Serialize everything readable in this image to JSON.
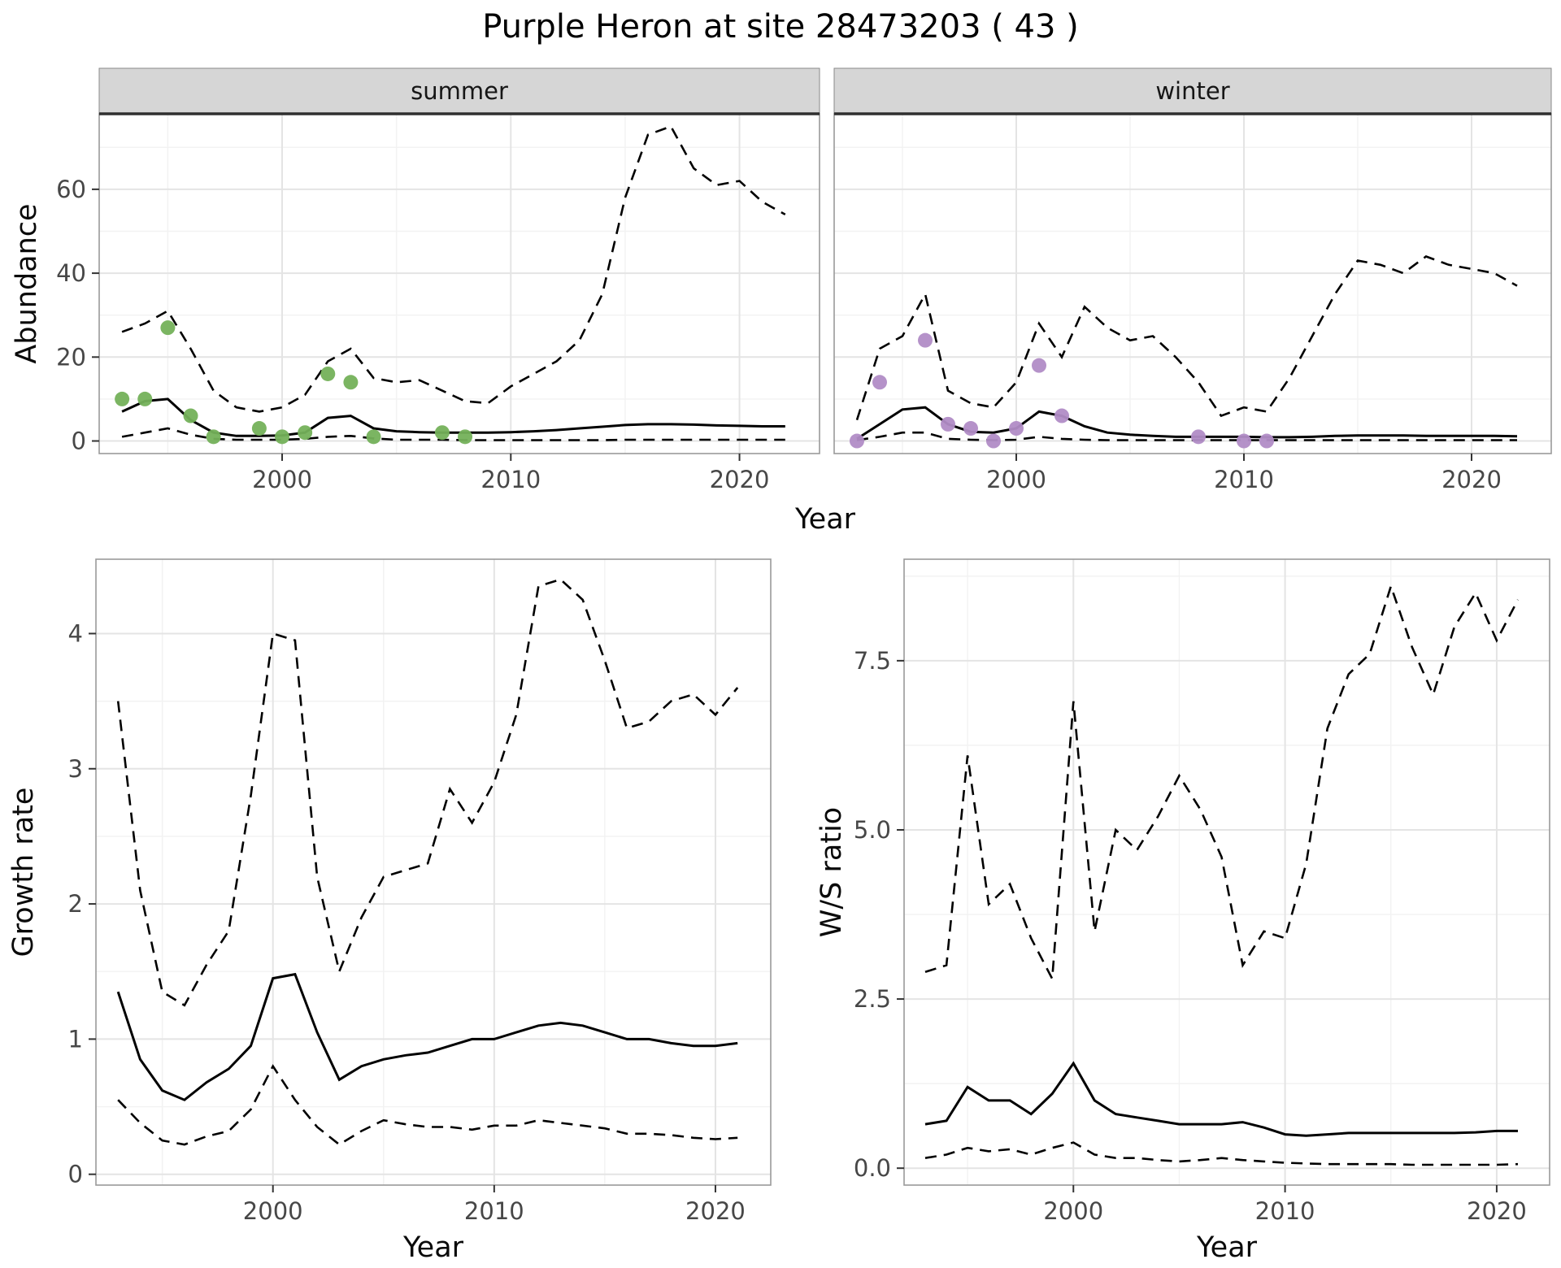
{
  "chart_data": {
    "type": "line",
    "title": "Purple Heron at site 28473203 ( 43 )",
    "style": {
      "line_color": "#000000",
      "strip_bg": "#d6d6d6",
      "strip_border": "#2f2f2f",
      "panel_border": "#9a9a9a",
      "grid_major": "#e4e4e4",
      "grid_minor": "#f2f2f2",
      "tick_color": "#333333",
      "dash": [
        14,
        9
      ]
    },
    "abundance_row": {
      "ylabel": "Abundance",
      "xlabel": "Year",
      "xlim": [
        1992,
        2023.5
      ],
      "ylim": [
        -3,
        78
      ],
      "xticks": [
        2000,
        2010,
        2020
      ],
      "xtick_labels": [
        "2000",
        "2010",
        "2020"
      ],
      "xticks_minor": [
        1995,
        2005,
        2015
      ],
      "yticks": [
        0,
        20,
        40,
        60
      ],
      "ytick_labels": [
        "0",
        "20",
        "40",
        "60"
      ],
      "yticks_minor": [
        10,
        30,
        50,
        70
      ],
      "years": [
        1993,
        1994,
        1995,
        1996,
        1997,
        1998,
        1999,
        2000,
        2001,
        2002,
        2003,
        2004,
        2005,
        2006,
        2007,
        2008,
        2009,
        2010,
        2011,
        2012,
        2013,
        2014,
        2015,
        2016,
        2017,
        2018,
        2019,
        2020,
        2021,
        2022
      ],
      "facets": [
        {
          "label": "summer",
          "point_color": "#74b15a",
          "mean": [
            7,
            9.5,
            10,
            5,
            2,
            1.2,
            1.2,
            1.3,
            2,
            5.5,
            6,
            3,
            2.3,
            2.1,
            2,
            2,
            2,
            2.1,
            2.3,
            2.6,
            3,
            3.4,
            3.8,
            4,
            4,
            3.9,
            3.7,
            3.6,
            3.5,
            3.5
          ],
          "upper": [
            26,
            28,
            31,
            22,
            12,
            8,
            7,
            8,
            11,
            19,
            22,
            15,
            14,
            14.5,
            12,
            9.5,
            9,
            13,
            16,
            19,
            24,
            35,
            58,
            73,
            75,
            65,
            61,
            62,
            57,
            54
          ],
          "lower": [
            1,
            2,
            3,
            1.5,
            0.5,
            0.3,
            0.3,
            0.3,
            0.5,
            1,
            1.2,
            0.6,
            0.3,
            0.3,
            0.3,
            0.2,
            0.2,
            0.2,
            0.2,
            0.2,
            0.2,
            0.2,
            0.3,
            0.3,
            0.3,
            0.3,
            0.3,
            0.3,
            0.3,
            0.3
          ],
          "observed": {
            "years": [
              1993,
              1994,
              1995,
              1996,
              1997,
              1999,
              2000,
              2001,
              2002,
              2003,
              2004,
              2007,
              2008
            ],
            "counts": [
              10,
              10,
              27,
              6,
              1,
              3,
              1,
              2,
              16,
              14,
              1,
              2,
              1
            ]
          }
        },
        {
          "label": "winter",
          "point_color": "#b18cc6",
          "mean": [
            0.5,
            4,
            7.5,
            8,
            4,
            2.2,
            2,
            3,
            7,
            6,
            3.5,
            2,
            1.5,
            1.2,
            1,
            1,
            1,
            1,
            0.9,
            0.9,
            1,
            1.2,
            1.3,
            1.3,
            1.3,
            1.2,
            1.2,
            1.2,
            1.2,
            1.1
          ],
          "upper": [
            5,
            22,
            25,
            35,
            12,
            9,
            8,
            14,
            28,
            20,
            32,
            27,
            24,
            25,
            20,
            14,
            6,
            8,
            7,
            15,
            25,
            35,
            43,
            42,
            40,
            44,
            42,
            41,
            40,
            37
          ],
          "lower": [
            0.2,
            1,
            2,
            2,
            0.5,
            0.3,
            0.2,
            0.3,
            1,
            0.5,
            0.3,
            0.2,
            0.2,
            0.2,
            0.2,
            0.2,
            0.2,
            0.2,
            0.2,
            0.2,
            0.2,
            0.2,
            0.2,
            0.2,
            0.2,
            0.2,
            0.2,
            0.2,
            0.2,
            0.2
          ],
          "observed": {
            "years": [
              1993,
              1994,
              1996,
              1997,
              1998,
              1999,
              2000,
              2001,
              2002,
              2008,
              2010,
              2011
            ],
            "counts": [
              0,
              14,
              24,
              4,
              3,
              0,
              3,
              18,
              6,
              1,
              0,
              0
            ]
          }
        }
      ]
    },
    "growth_rate_panel": {
      "ylabel": "Growth rate",
      "xlabel": "Year",
      "xlim": [
        1992,
        2022.5
      ],
      "ylim": [
        -0.08,
        4.55
      ],
      "xticks": [
        2000,
        2010,
        2020
      ],
      "xtick_labels": [
        "2000",
        "2010",
        "2020"
      ],
      "xticks_minor": [
        1995,
        2005,
        2015
      ],
      "yticks": [
        0,
        1,
        2,
        3,
        4
      ],
      "ytick_labels": [
        "0",
        "1",
        "2",
        "3",
        "4"
      ],
      "yticks_minor": [
        0.5,
        1.5,
        2.5,
        3.5
      ],
      "years": [
        1993,
        1994,
        1995,
        1996,
        1997,
        1998,
        1999,
        2000,
        2001,
        2002,
        2003,
        2004,
        2005,
        2006,
        2007,
        2008,
        2009,
        2010,
        2011,
        2012,
        2013,
        2014,
        2015,
        2016,
        2017,
        2018,
        2019,
        2020,
        2021
      ],
      "mean": [
        1.35,
        0.85,
        0.62,
        0.55,
        0.68,
        0.78,
        0.95,
        1.45,
        1.48,
        1.05,
        0.7,
        0.8,
        0.85,
        0.88,
        0.9,
        0.95,
        1.0,
        1.0,
        1.05,
        1.1,
        1.12,
        1.1,
        1.05,
        1.0,
        1.0,
        0.97,
        0.95,
        0.95,
        0.97
      ],
      "upper": [
        3.5,
        2.1,
        1.35,
        1.25,
        1.55,
        1.8,
        2.8,
        4.0,
        3.95,
        2.2,
        1.5,
        1.9,
        2.2,
        2.25,
        2.3,
        2.85,
        2.6,
        2.9,
        3.4,
        4.35,
        4.4,
        4.25,
        3.8,
        3.3,
        3.35,
        3.5,
        3.55,
        3.4,
        3.6
      ],
      "lower": [
        0.55,
        0.38,
        0.25,
        0.22,
        0.28,
        0.32,
        0.48,
        0.8,
        0.55,
        0.35,
        0.22,
        0.32,
        0.4,
        0.37,
        0.35,
        0.35,
        0.33,
        0.36,
        0.36,
        0.4,
        0.38,
        0.36,
        0.34,
        0.3,
        0.3,
        0.29,
        0.27,
        0.26,
        0.27
      ]
    },
    "ws_ratio_panel": {
      "ylabel": "W/S ratio",
      "xlabel": "Year",
      "xlim": [
        1992,
        2022.5
      ],
      "ylim": [
        -0.25,
        9.0
      ],
      "xticks": [
        2000,
        2010,
        2020
      ],
      "xtick_labels": [
        "2000",
        "2010",
        "2020"
      ],
      "xticks_minor": [
        1995,
        2005,
        2015
      ],
      "yticks": [
        0,
        2.5,
        5,
        7.5
      ],
      "ytick_labels": [
        "0.0",
        "2.5",
        "5.0",
        "7.5"
      ],
      "yticks_minor": [
        1.25,
        3.75,
        6.25,
        8.75
      ],
      "years": [
        1993,
        1994,
        1995,
        1996,
        1997,
        1998,
        1999,
        2000,
        2001,
        2002,
        2003,
        2004,
        2005,
        2006,
        2007,
        2008,
        2009,
        2010,
        2011,
        2012,
        2013,
        2014,
        2015,
        2016,
        2017,
        2018,
        2019,
        2020,
        2021
      ],
      "mean": [
        0.65,
        0.7,
        1.2,
        1.0,
        1.0,
        0.8,
        1.1,
        1.55,
        1.0,
        0.8,
        0.75,
        0.7,
        0.65,
        0.65,
        0.65,
        0.68,
        0.6,
        0.5,
        0.48,
        0.5,
        0.52,
        0.52,
        0.52,
        0.52,
        0.52,
        0.52,
        0.53,
        0.55,
        0.55
      ],
      "upper": [
        2.9,
        3.0,
        6.1,
        3.9,
        4.2,
        3.4,
        2.8,
        6.9,
        3.5,
        5.0,
        4.7,
        5.2,
        5.8,
        5.3,
        4.6,
        3.0,
        3.5,
        3.4,
        4.5,
        6.5,
        7.3,
        7.6,
        8.6,
        7.7,
        7.0,
        8.0,
        8.5,
        7.8,
        8.4
      ],
      "lower": [
        0.15,
        0.2,
        0.3,
        0.25,
        0.28,
        0.2,
        0.3,
        0.38,
        0.2,
        0.15,
        0.15,
        0.12,
        0.1,
        0.12,
        0.15,
        0.12,
        0.1,
        0.08,
        0.07,
        0.06,
        0.06,
        0.06,
        0.06,
        0.05,
        0.05,
        0.05,
        0.05,
        0.05,
        0.06
      ]
    }
  }
}
